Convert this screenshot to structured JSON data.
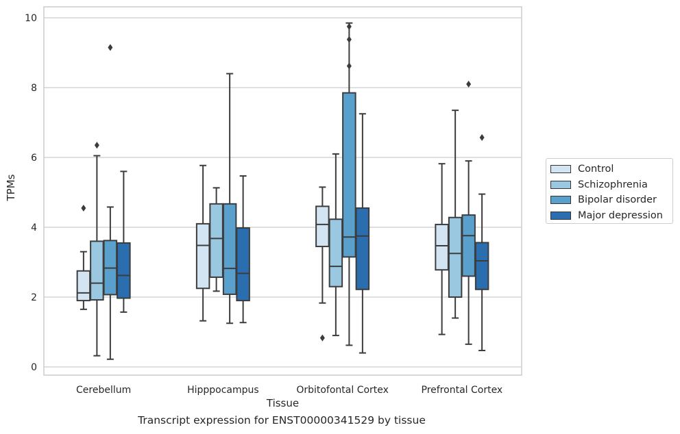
{
  "chart_data": {
    "type": "box",
    "ylabel": "TPMs",
    "xlabel": "Tissue",
    "caption": "Transcript expression for ENST00000341529 by tissue",
    "ylim": [
      -0.2,
      10.35
    ],
    "yticks": [
      0,
      2,
      4,
      6,
      8,
      10
    ],
    "grid": true,
    "legend_position": "right",
    "categories": [
      "Cerebellum",
      "Hipppocampus",
      "Orbitofontal Cortex",
      "Prefrontal Cortex"
    ],
    "series": [
      {
        "name": "Control",
        "color": "#d3e4f3",
        "boxes": [
          {
            "whisker_low": 1.65,
            "q1": 1.9,
            "median": 2.12,
            "q3": 2.75,
            "whisker_high": 3.3,
            "outliers": [
              4.55
            ]
          },
          {
            "whisker_low": 1.32,
            "q1": 2.25,
            "median": 3.48,
            "q3": 4.1,
            "whisker_high": 5.77,
            "outliers": []
          },
          {
            "whisker_low": 1.83,
            "q1": 3.45,
            "median": 4.08,
            "q3": 4.6,
            "whisker_high": 5.15,
            "outliers": [
              0.83
            ]
          },
          {
            "whisker_low": 0.93,
            "q1": 2.78,
            "median": 3.47,
            "q3": 4.08,
            "whisker_high": 5.82,
            "outliers": []
          }
        ]
      },
      {
        "name": "Schizophrenia",
        "color": "#9ac8e1",
        "boxes": [
          {
            "whisker_low": 0.32,
            "q1": 1.92,
            "median": 2.4,
            "q3": 3.6,
            "whisker_high": 6.05,
            "outliers": [
              6.35
            ]
          },
          {
            "whisker_low": 2.17,
            "q1": 2.57,
            "median": 3.68,
            "q3": 4.67,
            "whisker_high": 5.13,
            "outliers": []
          },
          {
            "whisker_low": 0.9,
            "q1": 2.3,
            "median": 2.88,
            "q3": 4.23,
            "whisker_high": 6.1,
            "outliers": []
          },
          {
            "whisker_low": 1.4,
            "q1": 2.0,
            "median": 3.25,
            "q3": 4.28,
            "whisker_high": 7.35,
            "outliers": []
          }
        ]
      },
      {
        "name": "Bipolar disorder",
        "color": "#5aa0cd",
        "boxes": [
          {
            "whisker_low": 0.22,
            "q1": 2.07,
            "median": 2.83,
            "q3": 3.62,
            "whisker_high": 4.58,
            "outliers": [
              9.15
            ]
          },
          {
            "whisker_low": 1.25,
            "q1": 2.08,
            "median": 2.82,
            "q3": 4.67,
            "whisker_high": 8.4,
            "outliers": []
          },
          {
            "whisker_low": 0.62,
            "q1": 3.15,
            "median": 3.72,
            "q3": 7.85,
            "whisker_high": 9.85,
            "outliers": [
              9.38,
              9.75,
              8.62
            ]
          },
          {
            "whisker_low": 0.65,
            "q1": 2.6,
            "median": 3.76,
            "q3": 4.35,
            "whisker_high": 5.9,
            "outliers": [
              8.1
            ]
          }
        ]
      },
      {
        "name": "Major depression",
        "color": "#2b6eb0",
        "boxes": [
          {
            "whisker_low": 1.57,
            "q1": 1.97,
            "median": 2.62,
            "q3": 3.55,
            "whisker_high": 5.6,
            "outliers": []
          },
          {
            "whisker_low": 1.27,
            "q1": 1.9,
            "median": 2.68,
            "q3": 3.98,
            "whisker_high": 5.47,
            "outliers": []
          },
          {
            "whisker_low": 0.4,
            "q1": 2.22,
            "median": 3.75,
            "q3": 4.55,
            "whisker_high": 7.25,
            "outliers": []
          },
          {
            "whisker_low": 0.47,
            "q1": 2.22,
            "median": 3.04,
            "q3": 3.56,
            "whisker_high": 4.95,
            "outliers": [
              6.57
            ]
          }
        ]
      }
    ]
  }
}
